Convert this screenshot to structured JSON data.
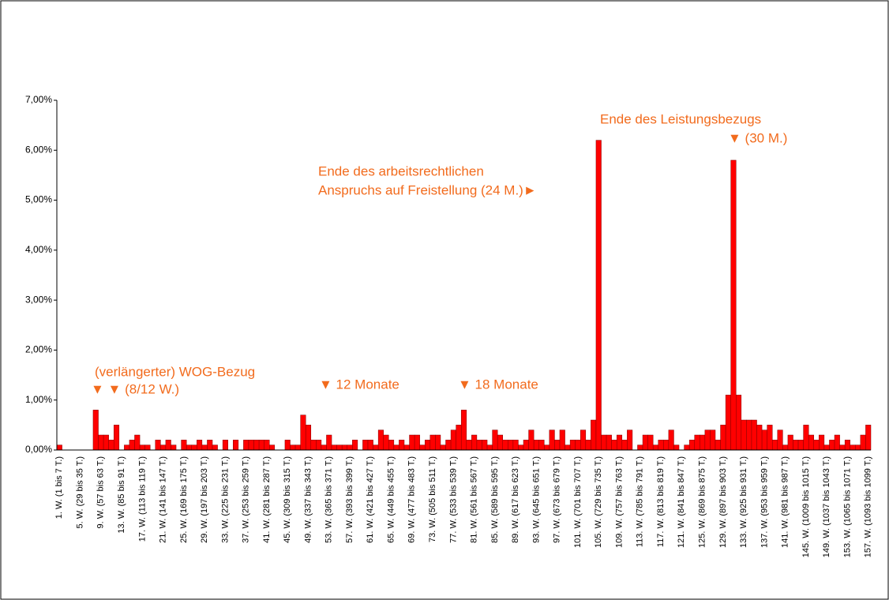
{
  "chart_data": {
    "type": "bar",
    "categories": [
      "1. W. (1 bis 7 T.)",
      null,
      null,
      null,
      "5. W. (29 bis 35 T.)",
      null,
      null,
      null,
      "9. W. (57 bis 63 T.)",
      null,
      null,
      null,
      "13. W. (85 bis 91 T.)",
      null,
      null,
      null,
      "17. W. (113 bis 119 T.)",
      null,
      null,
      null,
      "21. W. (141 bis 147 T.)",
      null,
      null,
      null,
      "25. W. (169 bis 175 T.)",
      null,
      null,
      null,
      "29. W. (197 bis 203 T.)",
      null,
      null,
      null,
      "33. W. (225 bis 231 T.)",
      null,
      null,
      null,
      "37. W. (253 bis 259 T.)",
      null,
      null,
      null,
      "41. W. (281 bis 287 T.)",
      null,
      null,
      null,
      "45. W. (309 bis 315 T.)",
      null,
      null,
      null,
      "49. W. (337 bis 343 T.)",
      null,
      null,
      null,
      "53. W. (365 bis 371 T.)",
      null,
      null,
      null,
      "57. W. (393 bis 399 T.)",
      null,
      null,
      null,
      "61. W. (421 bis 427 T.)",
      null,
      null,
      null,
      "65. W. (449 bis 455 T.)",
      null,
      null,
      null,
      "69. W. (477 bis 483 T.)",
      null,
      null,
      null,
      "73. W. (505 bis 511 T.)",
      null,
      null,
      null,
      "77. W. (533 bis 539 T.)",
      null,
      null,
      null,
      "81. W. (561 bis 567 T.)",
      null,
      null,
      null,
      "85. W. (589 bis 595 T.)",
      null,
      null,
      null,
      "89. W. (617 bis 623 T.)",
      null,
      null,
      null,
      "93. W. (645 bis 651 T.)",
      null,
      null,
      null,
      "97. W. (673 bis 679 T.)",
      null,
      null,
      null,
      "101. W. (701 bis 707 T.)",
      null,
      null,
      null,
      "105. W. (729 bis 735 T.)",
      null,
      null,
      null,
      "109. W. (757 bis 763 T.)",
      null,
      null,
      null,
      "113. W. (785 bis 791 T.)",
      null,
      null,
      null,
      "117. W. (813 bis 819 T.)",
      null,
      null,
      null,
      "121. W. (841 bis 847 T.)",
      null,
      null,
      null,
      "125. W. (869 bis 875 T.)",
      null,
      null,
      null,
      "129. W. (897 bis 903 T.)",
      null,
      null,
      null,
      "133. W. (925 bis 931 T.)",
      null,
      null,
      null,
      "137. W. (953 bis 959 T.)",
      null,
      null,
      null,
      "141. W. (981 bis 987 T.)",
      null,
      null,
      null,
      "145. W. (1009 bis 1015 T.)",
      null,
      null,
      null,
      "149. W. (1037 bis 1043 T.)",
      null,
      null,
      null,
      "153. W. (1065 bis 1071 T.)",
      null,
      null,
      null,
      "157. W. (1093 bis 1099 T.)"
    ],
    "values": [
      0.1,
      0,
      0,
      0,
      0,
      0,
      0,
      0.8,
      0.3,
      0.3,
      0.2,
      0.5,
      0,
      0.1,
      0.2,
      0.3,
      0.1,
      0.1,
      0,
      0.2,
      0.1,
      0.2,
      0.1,
      0,
      0.2,
      0.1,
      0.1,
      0.2,
      0.1,
      0.2,
      0.1,
      0,
      0.2,
      0,
      0.2,
      0,
      0.2,
      0.2,
      0.2,
      0.2,
      0.2,
      0.1,
      0,
      0,
      0.2,
      0.1,
      0.1,
      0.7,
      0.5,
      0.2,
      0.2,
      0.1,
      0.3,
      0.1,
      0.1,
      0.1,
      0.1,
      0.2,
      0,
      0.2,
      0.2,
      0.1,
      0.4,
      0.3,
      0.2,
      0.1,
      0.2,
      0.1,
      0.3,
      0.3,
      0.1,
      0.2,
      0.3,
      0.3,
      0.1,
      0.2,
      0.4,
      0.5,
      0.8,
      0.2,
      0.3,
      0.2,
      0.2,
      0.1,
      0.4,
      0.3,
      0.2,
      0.2,
      0.2,
      0.1,
      0.2,
      0.4,
      0.2,
      0.2,
      0.1,
      0.4,
      0.2,
      0.4,
      0.1,
      0.2,
      0.2,
      0.4,
      0.2,
      0.6,
      6.2,
      0.3,
      0.3,
      0.2,
      0.3,
      0.2,
      0.4,
      0,
      0.1,
      0.3,
      0.3,
      0.1,
      0.2,
      0.2,
      0.4,
      0.1,
      0,
      0.1,
      0.2,
      0.3,
      0.3,
      0.4,
      0.4,
      0.2,
      0.5,
      1.1,
      5.8,
      1.1,
      0.6,
      0.6,
      0.6,
      0.5,
      0.4,
      0.5,
      0.2,
      0.4,
      0.1,
      0.3,
      0.2,
      0.2,
      0.5,
      0.3,
      0.2,
      0.3,
      0.1,
      0.2,
      0.3,
      0.1,
      0.2,
      0.1,
      0.1,
      0.3,
      0.5
    ],
    "color": "#ff0000",
    "ylim": [
      0,
      7
    ],
    "yticks": [
      {
        "value": 0,
        "label": "0,00%"
      },
      {
        "value": 1,
        "label": "1,00%"
      },
      {
        "value": 2,
        "label": "2,00%"
      },
      {
        "value": 3,
        "label": "3,00%"
      },
      {
        "value": 4,
        "label": "4,00%"
      },
      {
        "value": 5,
        "label": "5,00%"
      },
      {
        "value": 6,
        "label": "6,00%"
      },
      {
        "value": 7,
        "label": "7,00%"
      }
    ],
    "grid": false,
    "annotations": [
      "(verlängerter) WOG-Bezug",
      "▼ ▼ (8/12 W.)",
      "▼ 12 Monate",
      "▼ 18 Monate",
      "Ende des arbeitsrechtlichen",
      "Anspruchs auf Freistellung (24 M.)►",
      "Ende des Leistungsbezugs",
      "▼ (30 M.)"
    ],
    "annotation_color": "#f26b1d"
  }
}
